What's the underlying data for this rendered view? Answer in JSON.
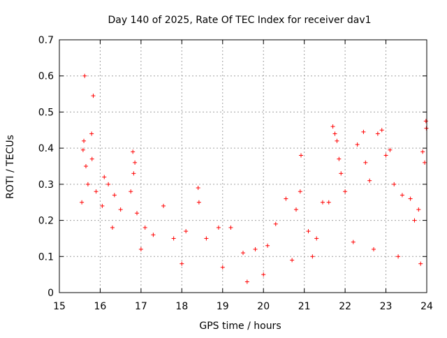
{
  "chart_data": {
    "type": "scatter",
    "title": "Day 140 of 2025, Rate Of TEC Index for receiver dav1",
    "xlabel": "GPS time / hours",
    "ylabel": "ROTI / TECUs",
    "xlim": [
      15,
      24
    ],
    "ylim": [
      0,
      0.7
    ],
    "x_ticks": [
      "15",
      "16",
      "17",
      "18",
      "19",
      "20",
      "21",
      "22",
      "23",
      "24"
    ],
    "y_ticks": [
      "0",
      "0.1",
      "0.2",
      "0.3",
      "0.4",
      "0.5",
      "0.6",
      "0.7"
    ],
    "grid": true,
    "marker": "+",
    "marker_color": "#ff0000",
    "points": [
      [
        15.62,
        0.6
      ],
      [
        15.83,
        0.545
      ],
      [
        15.79,
        0.44
      ],
      [
        15.6,
        0.42
      ],
      [
        15.58,
        0.395
      ],
      [
        15.8,
        0.37
      ],
      [
        15.65,
        0.35
      ],
      [
        15.55,
        0.25
      ],
      [
        15.7,
        0.3
      ],
      [
        15.9,
        0.28
      ],
      [
        16.1,
        0.32
      ],
      [
        16.2,
        0.3
      ],
      [
        16.35,
        0.27
      ],
      [
        16.05,
        0.24
      ],
      [
        16.5,
        0.23
      ],
      [
        16.8,
        0.39
      ],
      [
        16.85,
        0.36
      ],
      [
        16.82,
        0.33
      ],
      [
        16.75,
        0.28
      ],
      [
        16.9,
        0.22
      ],
      [
        17.1,
        0.18
      ],
      [
        17.3,
        0.16
      ],
      [
        17.55,
        0.24
      ],
      [
        17.8,
        0.15
      ],
      [
        18.1,
        0.17
      ],
      [
        18.4,
        0.29
      ],
      [
        18.42,
        0.25
      ],
      [
        18.6,
        0.15
      ],
      [
        18.9,
        0.18
      ],
      [
        19.2,
        0.18
      ],
      [
        19.5,
        0.11
      ],
      [
        19.8,
        0.12
      ],
      [
        20.1,
        0.13
      ],
      [
        20.3,
        0.19
      ],
      [
        20.55,
        0.26
      ],
      [
        20.8,
        0.23
      ],
      [
        20.9,
        0.28
      ],
      [
        20.92,
        0.38
      ],
      [
        21.1,
        0.17
      ],
      [
        21.3,
        0.15
      ],
      [
        21.45,
        0.25
      ],
      [
        21.6,
        0.25
      ],
      [
        21.7,
        0.46
      ],
      [
        21.75,
        0.44
      ],
      [
        21.8,
        0.42
      ],
      [
        21.85,
        0.37
      ],
      [
        21.9,
        0.33
      ],
      [
        22.0,
        0.28
      ],
      [
        22.3,
        0.41
      ],
      [
        22.45,
        0.445
      ],
      [
        22.5,
        0.36
      ],
      [
        22.6,
        0.31
      ],
      [
        22.8,
        0.44
      ],
      [
        22.9,
        0.45
      ],
      [
        23.0,
        0.38
      ],
      [
        23.1,
        0.395
      ],
      [
        23.2,
        0.3
      ],
      [
        23.4,
        0.27
      ],
      [
        23.6,
        0.26
      ],
      [
        23.8,
        0.23
      ],
      [
        23.9,
        0.39
      ],
      [
        23.98,
        0.475
      ],
      [
        23.99,
        0.455
      ],
      [
        23.95,
        0.36
      ],
      [
        23.7,
        0.2
      ],
      [
        16.3,
        0.18
      ],
      [
        17.0,
        0.12
      ],
      [
        18.0,
        0.08
      ],
      [
        19.0,
        0.07
      ],
      [
        19.6,
        0.03
      ],
      [
        20.0,
        0.05
      ],
      [
        20.7,
        0.09
      ],
      [
        21.2,
        0.1
      ],
      [
        22.2,
        0.14
      ],
      [
        22.7,
        0.12
      ],
      [
        23.3,
        0.1
      ],
      [
        23.85,
        0.08
      ]
    ]
  }
}
